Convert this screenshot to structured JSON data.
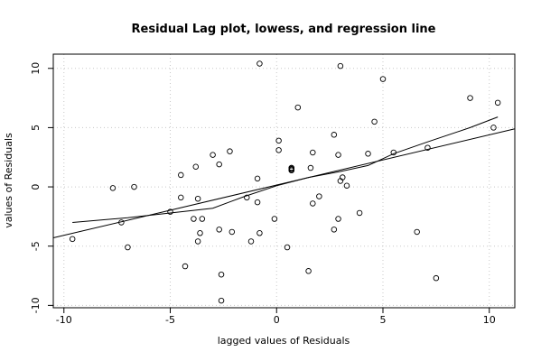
{
  "chart_data": {
    "type": "scatter",
    "title": "Residual Lag plot, lowess, and regression line",
    "xlabel": "lagged values of Residuals",
    "ylabel": "values of Residuals",
    "xlim": [
      -10.5,
      11.2
    ],
    "ylim": [
      -10.2,
      11.2
    ],
    "x_ticks": [
      -10,
      -5,
      0,
      5,
      10
    ],
    "y_ticks": [
      -10,
      -5,
      0,
      5,
      10
    ],
    "grid": true,
    "points": [
      [
        -9.6,
        -4.4
      ],
      [
        -7.7,
        -0.1
      ],
      [
        -7.3,
        -3.0
      ],
      [
        -7.0,
        -5.1
      ],
      [
        -6.7,
        0.0
      ],
      [
        -5.0,
        -2.1
      ],
      [
        -4.5,
        1.0
      ],
      [
        -4.5,
        -0.9
      ],
      [
        -4.3,
        -6.7
      ],
      [
        -3.9,
        -2.7
      ],
      [
        -3.8,
        1.7
      ],
      [
        -3.7,
        -1.0
      ],
      [
        -3.7,
        -4.6
      ],
      [
        -3.6,
        -3.9
      ],
      [
        -3.5,
        -2.7
      ],
      [
        -3.0,
        2.7
      ],
      [
        -2.7,
        1.9
      ],
      [
        -2.7,
        -3.6
      ],
      [
        -2.6,
        -7.4
      ],
      [
        -2.6,
        -9.6
      ],
      [
        -2.2,
        3.0
      ],
      [
        -2.1,
        -3.8
      ],
      [
        -1.4,
        -0.9
      ],
      [
        -1.2,
        -4.6
      ],
      [
        -0.9,
        -1.3
      ],
      [
        -0.9,
        0.7
      ],
      [
        -0.8,
        10.4
      ],
      [
        -0.8,
        -3.9
      ],
      [
        -0.1,
        -2.7
      ],
      [
        0.1,
        3.9
      ],
      [
        0.1,
        3.1
      ],
      [
        0.5,
        -5.1
      ],
      [
        0.7,
        1.5
      ],
      [
        0.7,
        1.6
      ],
      [
        0.7,
        1.4
      ],
      [
        0.7,
        1.5
      ],
      [
        0.7,
        1.6
      ],
      [
        0.7,
        1.5
      ],
      [
        0.7,
        1.4
      ],
      [
        0.7,
        1.5
      ],
      [
        1.0,
        6.7
      ],
      [
        1.5,
        -7.1
      ],
      [
        1.6,
        1.6
      ],
      [
        1.7,
        2.9
      ],
      [
        1.7,
        -1.4
      ],
      [
        2.0,
        -0.8
      ],
      [
        2.7,
        -3.6
      ],
      [
        2.7,
        4.4
      ],
      [
        2.9,
        2.7
      ],
      [
        2.9,
        -2.7
      ],
      [
        3.0,
        10.2
      ],
      [
        3.0,
        0.5
      ],
      [
        3.1,
        0.8
      ],
      [
        3.3,
        0.1
      ],
      [
        3.9,
        -2.2
      ],
      [
        4.3,
        2.8
      ],
      [
        4.6,
        5.5
      ],
      [
        5.0,
        9.1
      ],
      [
        5.5,
        2.9
      ],
      [
        6.6,
        -3.8
      ],
      [
        7.1,
        3.3
      ],
      [
        7.5,
        -7.7
      ],
      [
        9.1,
        7.5
      ],
      [
        10.2,
        5.0
      ],
      [
        10.4,
        7.1
      ]
    ],
    "regression_line": [
      [
        -10.5,
        -4.3
      ],
      [
        11.2,
        4.9
      ]
    ],
    "lowess_line": [
      [
        -9.6,
        -3.0
      ],
      [
        -7.0,
        -2.6
      ],
      [
        -5.0,
        -2.2
      ],
      [
        -3.0,
        -1.8
      ],
      [
        -1.5,
        -0.8
      ],
      [
        0.0,
        0.1
      ],
      [
        1.5,
        0.8
      ],
      [
        3.0,
        1.3
      ],
      [
        4.3,
        1.8
      ],
      [
        5.5,
        2.8
      ],
      [
        7.1,
        3.8
      ],
      [
        9.1,
        5.0
      ],
      [
        10.4,
        5.9
      ]
    ]
  }
}
